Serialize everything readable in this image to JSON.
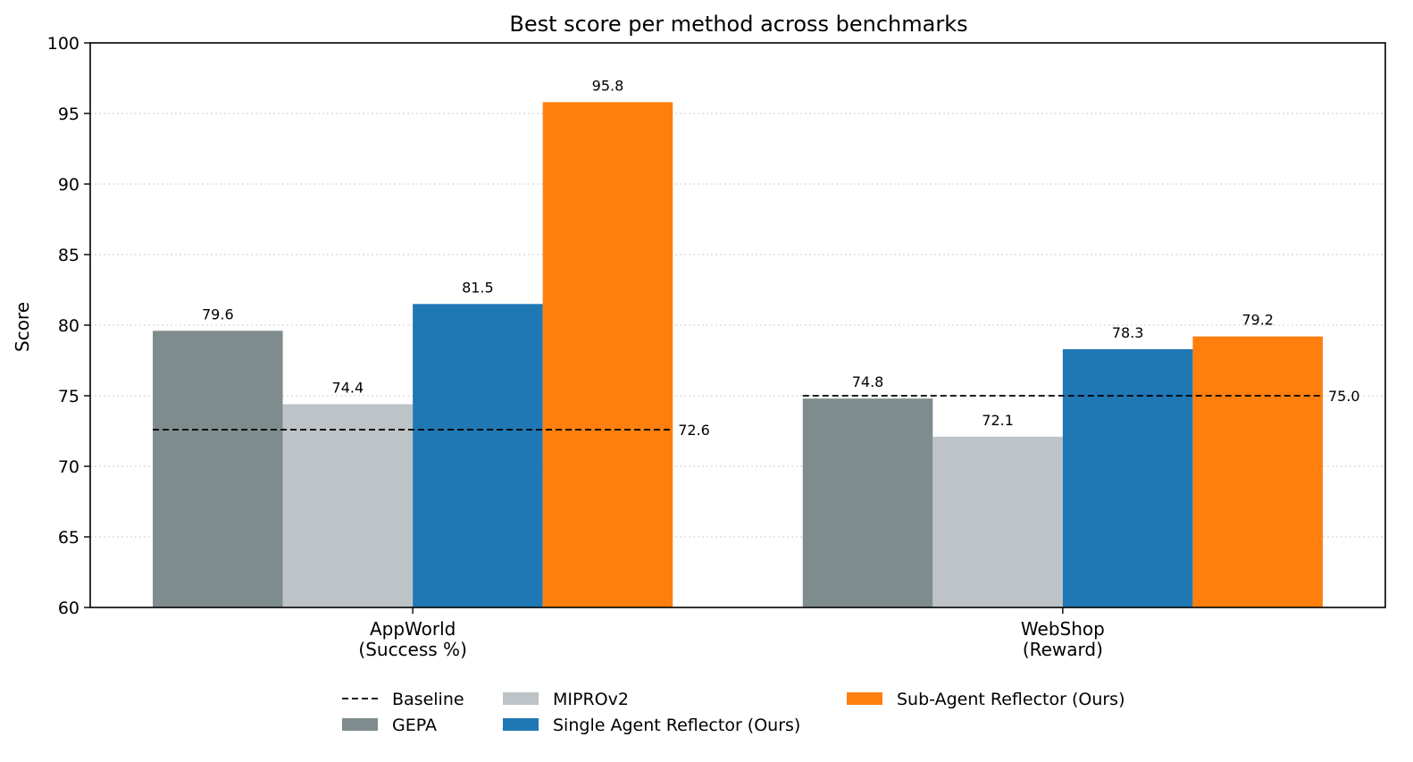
{
  "chart_data": {
    "type": "bar",
    "title": "Best score per method across benchmarks",
    "xlabel": "",
    "ylabel": "Score",
    "ylim": [
      60,
      100
    ],
    "yticks": [
      60,
      65,
      70,
      75,
      80,
      85,
      90,
      95,
      100
    ],
    "grid": "y-dotted",
    "legend_placement": "bottom-center",
    "categories": [
      [
        "AppWorld",
        "(Success %)"
      ],
      [
        "WebShop",
        "(Reward)"
      ]
    ],
    "series": [
      {
        "name": "GEPA",
        "color": "#7f8c8d",
        "values": [
          79.6,
          74.8
        ],
        "labels": [
          "79.6",
          "74.8"
        ]
      },
      {
        "name": "MIPROv2",
        "color": "#bdc3c7",
        "values": [
          74.4,
          72.1
        ],
        "labels": [
          "74.4",
          "72.1"
        ]
      },
      {
        "name": "Single Agent Reflector (Ours)",
        "color": "#1f77b4",
        "values": [
          81.5,
          78.3
        ],
        "labels": [
          "81.5",
          "78.3"
        ]
      },
      {
        "name": "Sub-Agent Reflector (Ours)",
        "color": "#ff7f0e",
        "values": [
          95.8,
          79.2
        ],
        "labels": [
          "95.8",
          "79.2"
        ]
      }
    ],
    "baseline": {
      "name": "Baseline",
      "style": "dashed",
      "color": "#000000",
      "values": [
        72.6,
        75.0
      ],
      "labels": [
        "72.6",
        "75.0"
      ]
    }
  }
}
